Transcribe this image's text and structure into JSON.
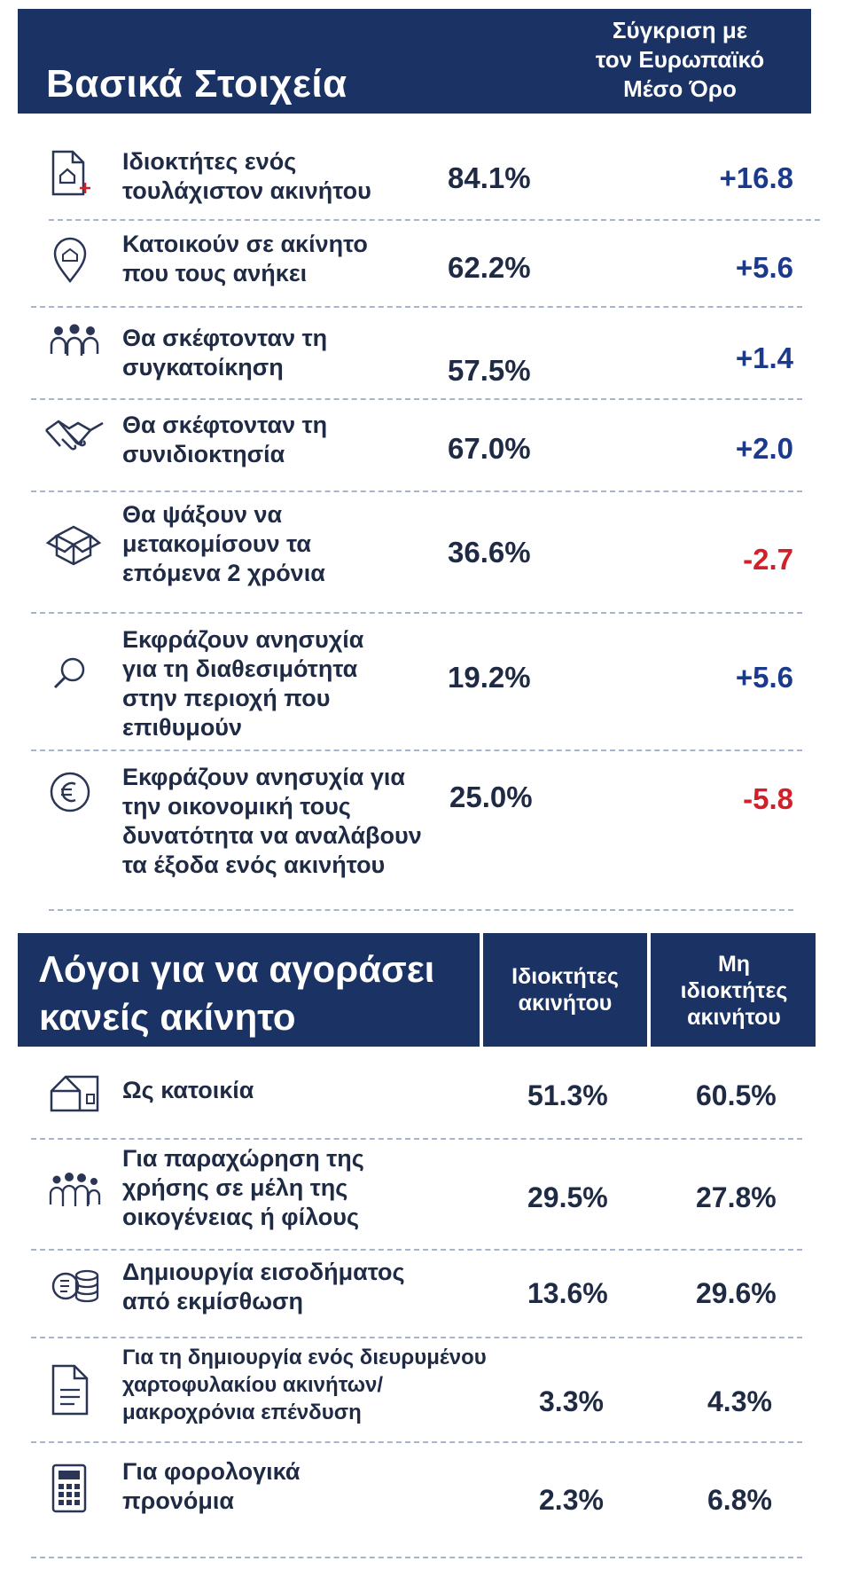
{
  "basic": {
    "title": "Βασικά Στοιχεία",
    "comparison_header": "Σύγκριση με\nτον Ευρωπαϊκό\nΜέσο Όρο",
    "rows": [
      {
        "icon": "house-document-icon",
        "label": "Ιδιοκτήτες ενός\nτουλάχιστον ακινήτου",
        "pct": "84.1%",
        "delta": "+16.8",
        "sign": "pos"
      },
      {
        "icon": "location-pin-icon",
        "label": "Κατοικούν σε ακίνητο\nπου τους ανήκει",
        "pct": "62.2%",
        "delta": "+5.6",
        "sign": "pos"
      },
      {
        "icon": "people-group-icon",
        "label": "Θα σκέφτονταν τη\n   συγκατοίκηση",
        "pct": "57.5%",
        "delta": "+1.4",
        "sign": "pos"
      },
      {
        "icon": "handshake-icon",
        "label": "Θα σκέφτονταν τη\nσυνιδιοκτησία",
        "pct": "67.0%",
        "delta": "+2.0",
        "sign": "pos"
      },
      {
        "icon": "moving-box-icon",
        "label": "Θα ψάξουν να\nμετακομίσουν τα\nεπόμενα 2 χρόνια",
        "pct": "36.6%",
        "delta": "-2.7",
        "sign": "neg"
      },
      {
        "icon": "magnifier-icon",
        "label": "Εκφράζουν ανησυχία\nγια τη διαθεσιμότητα\nστην περιοχή που\nεπιθυμούν",
        "pct": "19.2%",
        "delta": "+5.6",
        "sign": "pos"
      },
      {
        "icon": "euro-coin-icon",
        "label": "Εκφράζουν ανησυχία για\nτην οικονομική τους\nδυνατότητα να αναλάβουν\nτα έξοδα ενός ακινήτου",
        "pct": "25.0%",
        "delta": "-5.8",
        "sign": "neg"
      }
    ]
  },
  "reasons": {
    "title": "Λόγοι για να αγοράσει\nκανείς ακίνητο",
    "col_owners": "Ιδιοκτήτες\nακινήτου",
    "col_nonowners": "Μη\nιδιοκτήτες\nακινήτου",
    "rows": [
      {
        "icon": "house-icon",
        "label": "Ως κατοικία",
        "owners": "51.3%",
        "nonowners": "60.5%"
      },
      {
        "icon": "family-icon",
        "label": "Για παραχώρηση της\nχρήσης σε μέλη της\nοικογένειας ή φίλους",
        "owners": "29.5%",
        "nonowners": "27.8%"
      },
      {
        "icon": "coins-icon",
        "label": "Δημιουργία εισοδήματος\nαπό εκμίσθωση",
        "owners": "13.6%",
        "nonowners": "29.6%"
      },
      {
        "icon": "document-icon",
        "label": "Για τη δημιουργία ενός διευρυμένου\nχαρτοφυλακίου ακινήτων/\nμακροχρόνια επένδυση",
        "owners": "3.3%",
        "nonowners": "4.3%"
      },
      {
        "icon": "calculator-icon",
        "label": "Για φορολογικά\nπρονόμια",
        "owners": "2.3%",
        "nonowners": "6.8%"
      }
    ]
  }
}
